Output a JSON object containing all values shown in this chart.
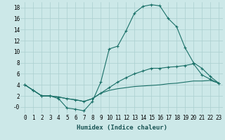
{
  "xlabel": "Humidex (Indice chaleur)",
  "x": [
    0,
    1,
    2,
    3,
    4,
    5,
    6,
    7,
    8,
    9,
    10,
    11,
    12,
    13,
    14,
    15,
    16,
    17,
    18,
    19,
    20,
    21,
    22,
    23
  ],
  "line1": [
    4.0,
    3.0,
    2.0,
    2.0,
    1.5,
    -0.2,
    -0.4,
    -0.7,
    1.0,
    4.5,
    10.5,
    11.0,
    13.8,
    17.0,
    18.2,
    18.5,
    18.3,
    16.0,
    14.5,
    10.7,
    8.0,
    7.0,
    5.5,
    4.3
  ],
  "line2": [
    4.0,
    3.0,
    2.0,
    2.0,
    1.8,
    1.5,
    1.3,
    1.0,
    1.5,
    2.5,
    3.5,
    4.5,
    5.3,
    6.0,
    6.5,
    7.0,
    7.0,
    7.2,
    7.3,
    7.5,
    7.8,
    5.8,
    5.0,
    4.3
  ],
  "line3": [
    4.0,
    3.0,
    2.0,
    2.0,
    1.8,
    1.5,
    1.3,
    1.0,
    1.5,
    2.5,
    3.0,
    3.3,
    3.5,
    3.7,
    3.8,
    3.9,
    4.0,
    4.2,
    4.3,
    4.5,
    4.7,
    4.7,
    4.8,
    4.3
  ],
  "line_color": "#1a7068",
  "bg_color": "#cce8e8",
  "grid_color": "#aacfcf",
  "ylim": [
    -1.2,
    19
  ],
  "xlim": [
    -0.5,
    23.5
  ],
  "yticks": [
    0,
    2,
    4,
    6,
    8,
    10,
    12,
    14,
    16,
    18
  ],
  "ytick_labels": [
    "-0",
    "2",
    "4",
    "6",
    "8",
    "10",
    "12",
    "14",
    "16",
    "18"
  ],
  "xticks": [
    0,
    1,
    2,
    3,
    4,
    5,
    6,
    7,
    8,
    9,
    10,
    11,
    12,
    13,
    14,
    15,
    16,
    17,
    18,
    19,
    20,
    21,
    22,
    23
  ],
  "marker": "+",
  "tick_fontsize": 5.5,
  "xlabel_fontsize": 6.5
}
